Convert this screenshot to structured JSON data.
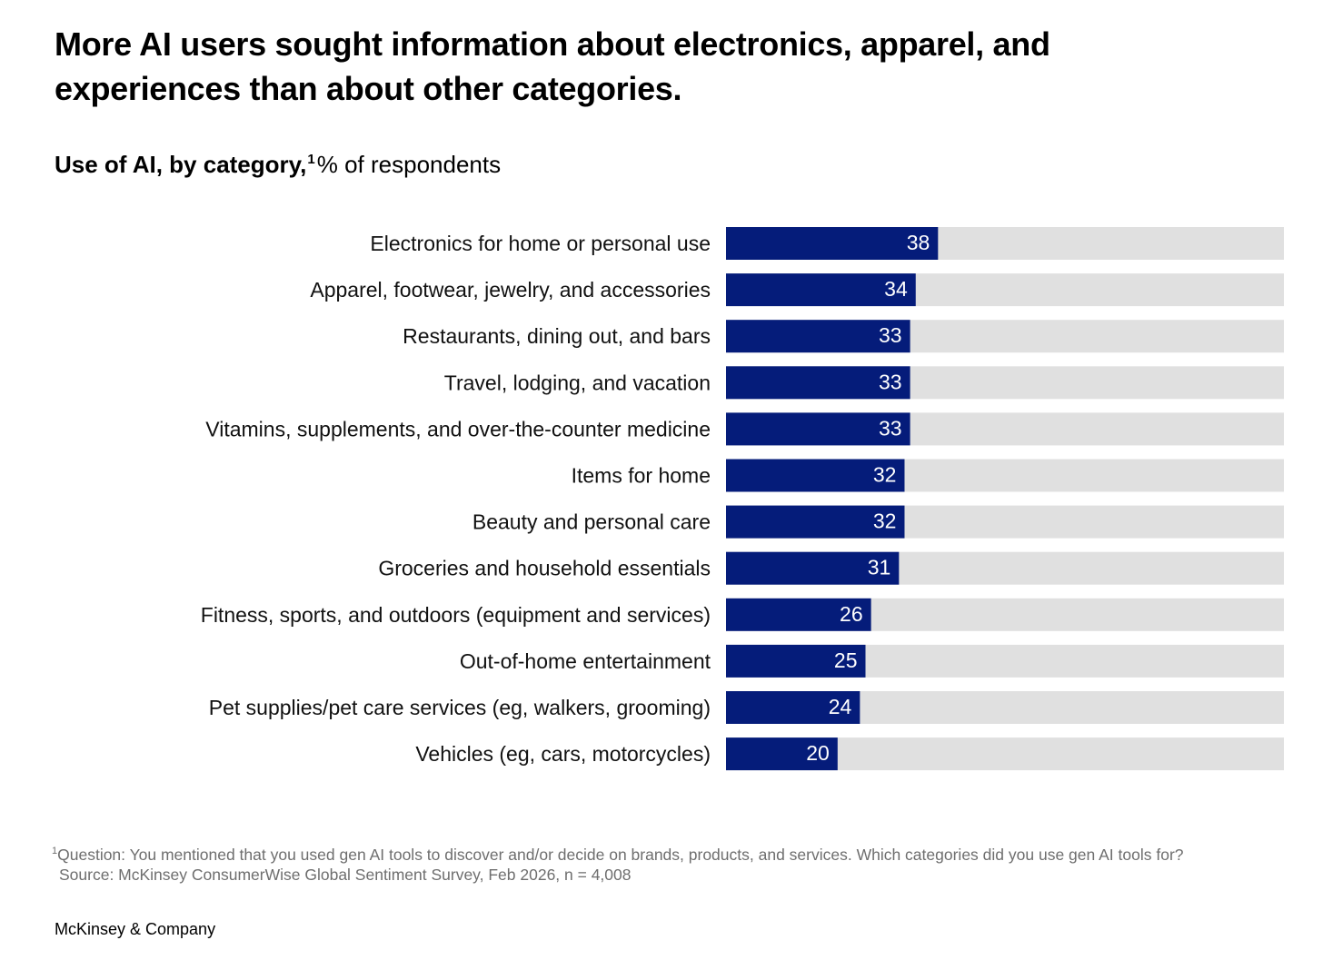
{
  "title": "More AI users sought information about electronics, apparel, and experiences than about other categories.",
  "subtitle": {
    "bold": "Use of AI, by category,",
    "footnote_mark": "1",
    "rest": "% of respondents"
  },
  "chart_data": {
    "type": "bar",
    "orientation": "horizontal",
    "categories": [
      "Electronics for home or personal use",
      "Apparel, footwear, jewelry, and accessories",
      "Restaurants, dining out, and bars",
      "Travel, lodging, and vacation",
      "Vitamins, supplements, and over-the-counter medicine",
      "Items for home",
      "Beauty and personal care",
      "Groceries and household essentials",
      "Fitness, sports, and outdoors (equipment and services)",
      "Out-of-home entertainment",
      "Pet supplies/pet care services (eg, walkers, grooming)",
      "Vehicles (eg, cars, motorcycles)"
    ],
    "values": [
      38,
      34,
      33,
      33,
      33,
      32,
      32,
      31,
      26,
      25,
      24,
      20
    ],
    "xlim": [
      0,
      100
    ],
    "unit": "%",
    "grid": false,
    "data_labels": true,
    "colors": {
      "bar": "#051C7A",
      "track": "#E0E0E0",
      "value_text": "#FFFFFF"
    }
  },
  "footnote": {
    "mark": "1",
    "question": "Question: You mentioned that you used gen AI tools to discover and/or decide on brands, products, and services. Which categories did you use gen AI tools for?",
    "source": "Source: McKinsey ConsumerWise Global Sentiment Survey, Feb 2026, n = 4,008"
  },
  "brand": "McKinsey & Company"
}
